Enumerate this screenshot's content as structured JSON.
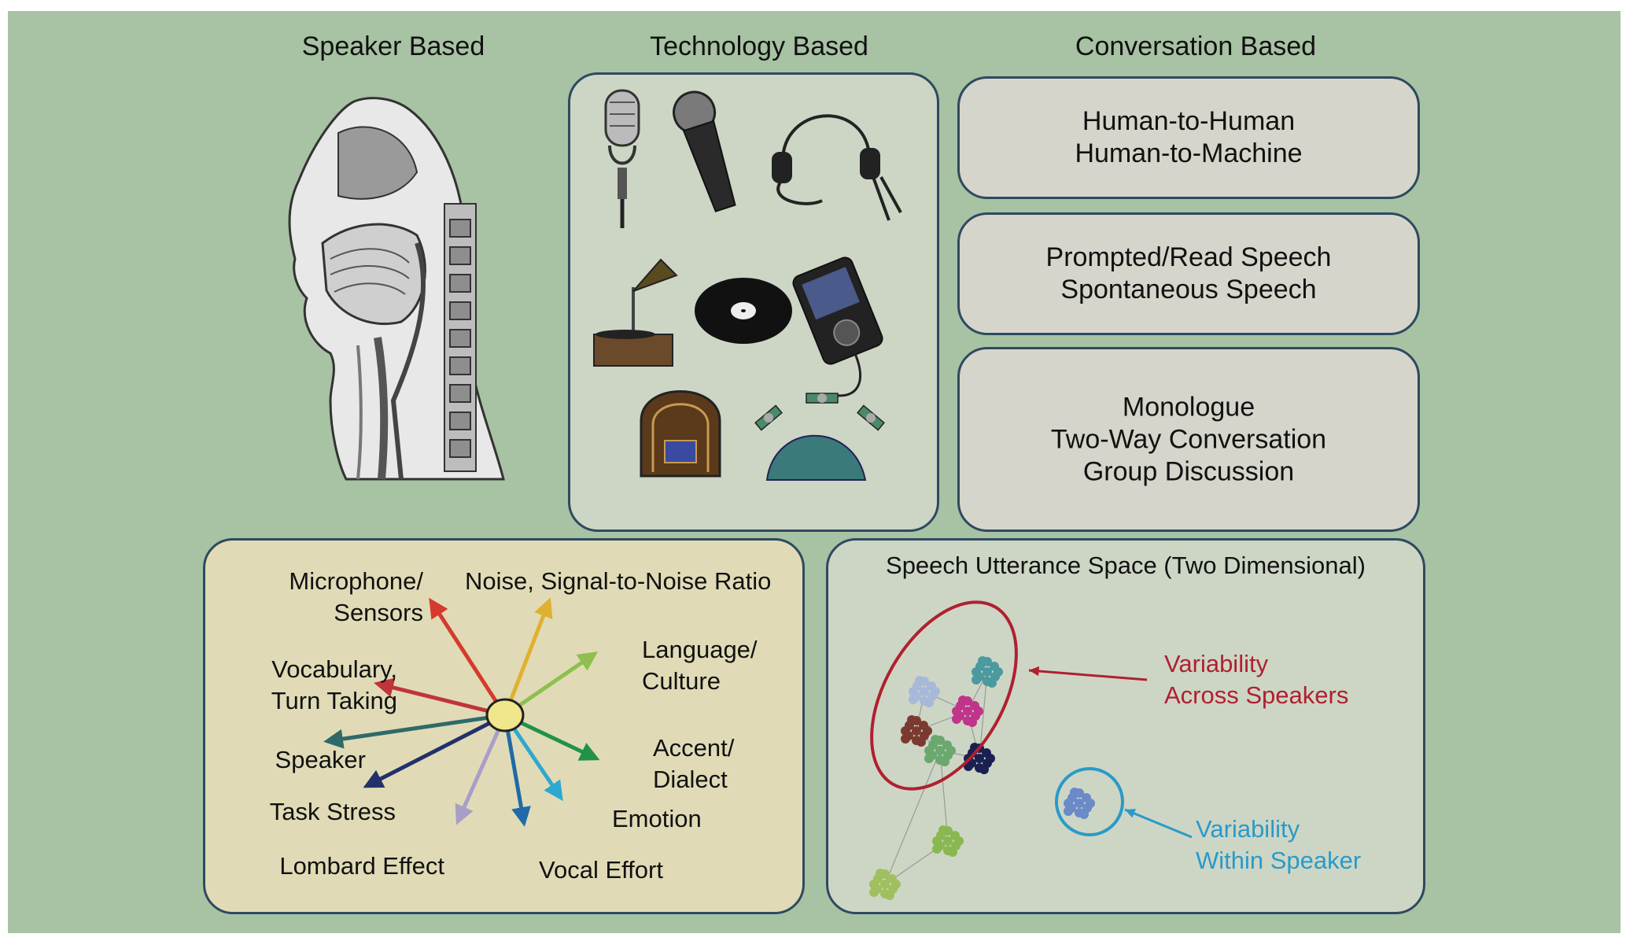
{
  "columns": {
    "speaker": "Speaker Based",
    "technology": "Technology Based",
    "conversation": "Conversation Based"
  },
  "conversation_boxes": [
    [
      "Human-to-Human",
      "Human-to-Machine"
    ],
    [
      "Prompted/Read Speech",
      "Spontaneous Speech"
    ],
    [
      "Monologue",
      "Two-Way Conversation",
      "Group Discussion"
    ]
  ],
  "radial": {
    "center_color": "#f0e68c",
    "labels": {
      "microphone": [
        "Microphone/",
        "Sensors"
      ],
      "noise": "Noise, Signal-to-Noise Ratio",
      "language": [
        "Language/",
        "Culture"
      ],
      "vocabulary": [
        "Vocabulary,",
        "Turn Taking"
      ],
      "speaker": "Speaker",
      "accent": [
        "Accent/",
        "Dialect"
      ],
      "task_stress": "Task Stress",
      "emotion": "Emotion",
      "lombard": "Lombard Effect",
      "vocal_effort": "Vocal Effort"
    },
    "arrow_colors": {
      "microphone": "#d63a2e",
      "noise": "#e0b030",
      "language": "#8fbf4e",
      "vocabulary": "#c0343a",
      "speaker": "#2f6a6a",
      "accent": "#23914a",
      "task_stress": "#23306a",
      "emotion": "#2ea8d0",
      "lombard": "#a99ec8",
      "vocal_effort": "#1f6aa8"
    }
  },
  "space": {
    "title": "Speech Utterance Space (Two Dimensional)",
    "across_label": [
      "Variability",
      "Across Speakers"
    ],
    "within_label": [
      "Variability",
      "Within Speaker"
    ],
    "across_color": "#b02030",
    "within_color": "#2a9ac8",
    "cluster_colors": [
      "#4a9aa0",
      "#a8b8d8",
      "#c0348a",
      "#7a3a30",
      "#6aa870",
      "#1a2050",
      "#8ab850",
      "#a0c060",
      "#6a8ac8"
    ]
  }
}
